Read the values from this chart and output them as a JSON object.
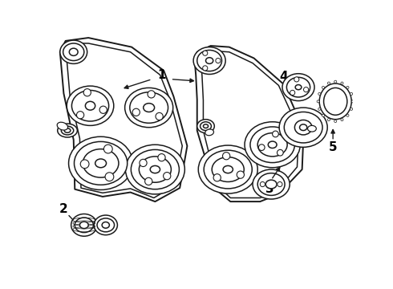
{
  "bg_color": "#ffffff",
  "line_color": "#1a1a1a",
  "label_color": "#000000",
  "figsize": [
    4.9,
    3.6
  ],
  "dpi": 100,
  "lw": 1.1
}
